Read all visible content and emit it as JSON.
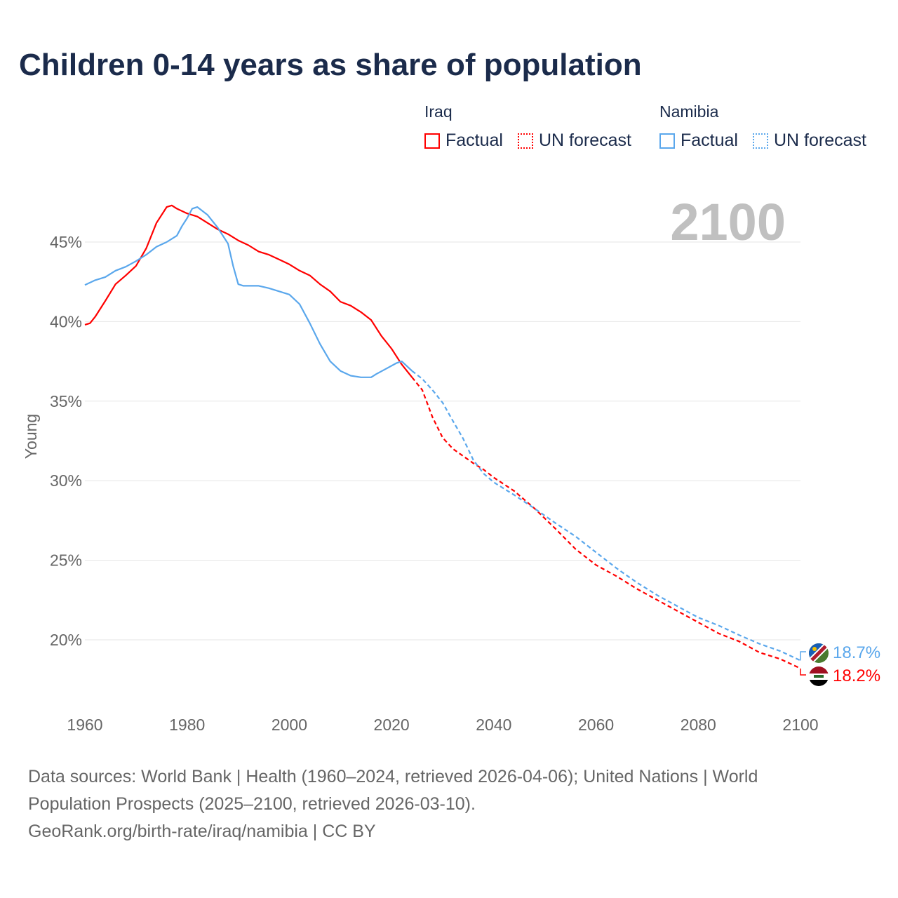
{
  "title": "Children 0-14 years as share of population",
  "legend": {
    "groups": [
      {
        "name": "Iraq",
        "items": [
          {
            "label": "Factual",
            "style": "solid"
          },
          {
            "label": "UN forecast",
            "style": "dotted"
          }
        ],
        "color": "#ff0000"
      },
      {
        "name": "Namibia",
        "items": [
          {
            "label": "Factual",
            "style": "solid"
          },
          {
            "label": "UN forecast",
            "style": "dotted"
          }
        ],
        "color": "#5aa7ec"
      }
    ]
  },
  "year_label": "2100",
  "footer": [
    "Data sources: World Bank | Health (1960–2024, retrieved 2026-04-06); United Nations | World",
    "Population Prospects (2025–2100, retrieved 2026-03-10).",
    "GeoRank.org/birth-rate/iraq/namibia | CC BY"
  ],
  "chart_data": {
    "type": "line",
    "title": "Children 0-14 years as share of population",
    "ylabel": "Young",
    "xlabel": "",
    "xlim": [
      1960,
      2100
    ],
    "ylim": [
      16.5,
      48.5
    ],
    "xticks": [
      "1960",
      "1980",
      "2000",
      "2020",
      "2040",
      "2060",
      "2080",
      "2100"
    ],
    "yticks": [
      "20%",
      "25%",
      "30%",
      "35%",
      "40%",
      "45%"
    ],
    "grid": true,
    "series": [
      {
        "name": "Iraq",
        "color": "#ff0000",
        "end_label": "18.2%",
        "flag": "iraq-flag",
        "factual": [
          [
            1960,
            39.8
          ],
          [
            1961,
            39.9
          ],
          [
            1962,
            40.3
          ],
          [
            1964,
            41.3
          ],
          [
            1966,
            42.35
          ],
          [
            1968,
            42.9
          ],
          [
            1970,
            43.5
          ],
          [
            1972,
            44.6
          ],
          [
            1974,
            46.2
          ],
          [
            1976,
            47.2
          ],
          [
            1977,
            47.3
          ],
          [
            1978,
            47.1
          ],
          [
            1980,
            46.8
          ],
          [
            1982,
            46.6
          ],
          [
            1984,
            46.2
          ],
          [
            1986,
            45.8
          ],
          [
            1988,
            45.5
          ],
          [
            1990,
            45.1
          ],
          [
            1992,
            44.8
          ],
          [
            1994,
            44.4
          ],
          [
            1996,
            44.2
          ],
          [
            1998,
            43.9
          ],
          [
            2000,
            43.6
          ],
          [
            2002,
            43.2
          ],
          [
            2004,
            42.9
          ],
          [
            2006,
            42.35
          ],
          [
            2008,
            41.9
          ],
          [
            2010,
            41.25
          ],
          [
            2012,
            41.0
          ],
          [
            2014,
            40.6
          ],
          [
            2016,
            40.1
          ],
          [
            2018,
            39.1
          ],
          [
            2020,
            38.3
          ],
          [
            2022,
            37.3
          ],
          [
            2024,
            36.5
          ]
        ],
        "forecast": [
          [
            2024,
            36.5
          ],
          [
            2026,
            35.7
          ],
          [
            2028,
            34.0
          ],
          [
            2030,
            32.7
          ],
          [
            2032,
            32.0
          ],
          [
            2034,
            31.55
          ],
          [
            2036,
            31.1
          ],
          [
            2038,
            30.7
          ],
          [
            2040,
            30.2
          ],
          [
            2044,
            29.35
          ],
          [
            2048,
            28.25
          ],
          [
            2052,
            27.0
          ],
          [
            2056,
            25.7
          ],
          [
            2060,
            24.7
          ],
          [
            2064,
            24.0
          ],
          [
            2068,
            23.2
          ],
          [
            2072,
            22.5
          ],
          [
            2076,
            21.8
          ],
          [
            2080,
            21.1
          ],
          [
            2084,
            20.4
          ],
          [
            2088,
            19.9
          ],
          [
            2092,
            19.2
          ],
          [
            2096,
            18.8
          ],
          [
            2100,
            18.2
          ]
        ]
      },
      {
        "name": "Namibia",
        "color": "#5aa7ec",
        "end_label": "18.7%",
        "flag": "namibia-flag",
        "factual": [
          [
            1960,
            42.3
          ],
          [
            1962,
            42.6
          ],
          [
            1964,
            42.8
          ],
          [
            1966,
            43.2
          ],
          [
            1968,
            43.45
          ],
          [
            1970,
            43.8
          ],
          [
            1972,
            44.2
          ],
          [
            1974,
            44.7
          ],
          [
            1976,
            45.0
          ],
          [
            1978,
            45.4
          ],
          [
            1979,
            46.0
          ],
          [
            1980,
            46.5
          ],
          [
            1981,
            47.1
          ],
          [
            1982,
            47.2
          ],
          [
            1984,
            46.7
          ],
          [
            1986,
            45.9
          ],
          [
            1988,
            44.9
          ],
          [
            1989,
            43.5
          ],
          [
            1990,
            42.35
          ],
          [
            1991,
            42.25
          ],
          [
            1994,
            42.25
          ],
          [
            1996,
            42.1
          ],
          [
            1998,
            41.9
          ],
          [
            2000,
            41.7
          ],
          [
            2002,
            41.1
          ],
          [
            2004,
            39.9
          ],
          [
            2006,
            38.6
          ],
          [
            2008,
            37.5
          ],
          [
            2010,
            36.9
          ],
          [
            2012,
            36.6
          ],
          [
            2014,
            36.5
          ],
          [
            2016,
            36.5
          ],
          [
            2017,
            36.7
          ],
          [
            2019,
            37.05
          ],
          [
            2021,
            37.4
          ],
          [
            2022,
            37.5
          ],
          [
            2024,
            36.9
          ]
        ],
        "forecast": [
          [
            2024,
            36.9
          ],
          [
            2026,
            36.4
          ],
          [
            2028,
            35.7
          ],
          [
            2030,
            34.9
          ],
          [
            2032,
            33.75
          ],
          [
            2034,
            32.65
          ],
          [
            2036,
            31.3
          ],
          [
            2038,
            30.45
          ],
          [
            2040,
            29.9
          ],
          [
            2044,
            29.1
          ],
          [
            2048,
            28.25
          ],
          [
            2052,
            27.35
          ],
          [
            2056,
            26.5
          ],
          [
            2060,
            25.5
          ],
          [
            2064,
            24.5
          ],
          [
            2068,
            23.6
          ],
          [
            2072,
            22.8
          ],
          [
            2076,
            22.1
          ],
          [
            2080,
            21.4
          ],
          [
            2084,
            20.9
          ],
          [
            2088,
            20.3
          ],
          [
            2092,
            19.75
          ],
          [
            2096,
            19.3
          ],
          [
            2100,
            18.7
          ]
        ]
      }
    ]
  }
}
